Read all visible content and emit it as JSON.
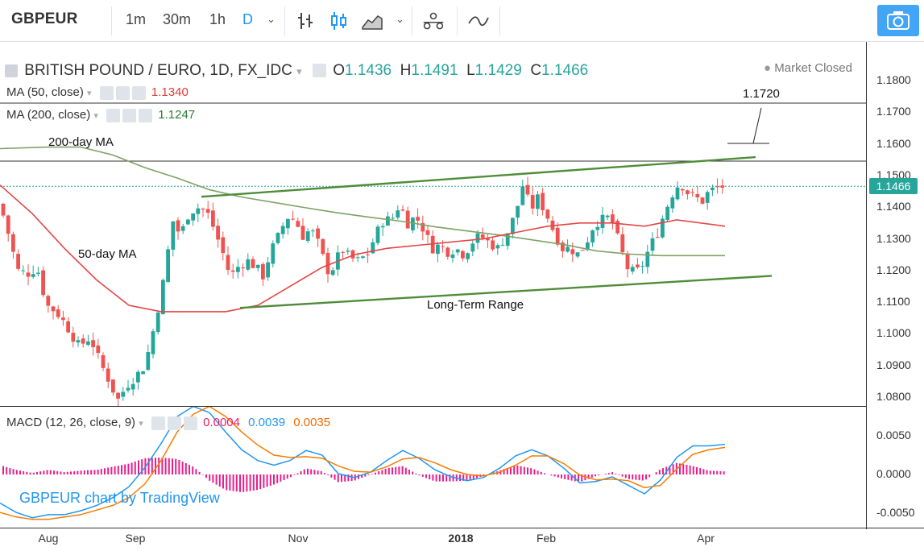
{
  "toolbar": {
    "symbol": "GBPEUR",
    "timeframes": [
      "1m",
      "30m",
      "1h",
      "D"
    ],
    "active_timeframe": "D",
    "icons": [
      "bar-chart-icon",
      "candlestick-icon",
      "area-chart-icon",
      "chevron-down-icon",
      "compare-icon",
      "indicators-icon",
      "snapshot-icon"
    ]
  },
  "legend": {
    "title": "BRITISH POUND / EURO, 1D, FX_IDC",
    "open_label": "O",
    "open": "1.1436",
    "high_label": "H",
    "high": "1.1491",
    "low_label": "L",
    "low": "1.1429",
    "close_label": "C",
    "close": "1.1466",
    "status": "Market Closed",
    "ma50_label": "MA (50, close)",
    "ma50_value": "1.1340",
    "ma200_label": "MA (200, close)",
    "ma200_value": "1.1247",
    "macd_label": "MACD (12, 26, close, 9)",
    "macd_hist": "0.0004",
    "macd_line": "0.0039",
    "macd_signal": "0.0035"
  },
  "colors": {
    "up": "#26a69a",
    "down": "#ef5350",
    "ma50": "#e54545",
    "ma200": "#7fa265",
    "trend": "#4f8c3a",
    "macd": "#2196f3",
    "signal": "#f57c00",
    "hist": "#e91e8c",
    "accent": "#2196f3"
  },
  "annotations": {
    "ma200_text": "200-day MA",
    "ma50_text": "50-day MA",
    "range_text": "Long-Term Range",
    "target_text": "1.1720"
  },
  "watermark": "GBPEUR chart by TradingView",
  "current_price_tag": "1.1466",
  "chart_data": [
    {
      "type": "candlestick",
      "title": "BRITISH POUND / EURO, 1D, FX_IDC",
      "x_ticks": [
        "Aug",
        "Sep",
        "Nov",
        "2018",
        "Feb",
        "Apr"
      ],
      "y_ticks": [
        "1.1800",
        "1.1700",
        "1.1600",
        "1.1500",
        "1.1400",
        "1.1300",
        "1.1200",
        "1.1100",
        "1.1000",
        "1.0900",
        "1.0800"
      ],
      "ylim": [
        1.077,
        1.1825
      ],
      "close_path": [
        [
          0,
          1.141
        ],
        [
          10,
          1.132
        ],
        [
          22,
          1.12
        ],
        [
          34,
          1.119
        ],
        [
          46,
          1.121
        ],
        [
          58,
          1.109
        ],
        [
          70,
          1.107
        ],
        [
          84,
          1.102
        ],
        [
          98,
          1.096
        ],
        [
          112,
          1.099
        ],
        [
          124,
          1.091
        ],
        [
          134,
          1.086
        ],
        [
          146,
          1.079
        ],
        [
          158,
          1.084
        ],
        [
          170,
          1.087
        ],
        [
          180,
          1.09
        ],
        [
          192,
          1.103
        ],
        [
          204,
          1.118
        ],
        [
          214,
          1.136
        ],
        [
          224,
          1.131
        ],
        [
          234,
          1.138
        ],
        [
          244,
          1.14
        ],
        [
          256,
          1.139
        ],
        [
          266,
          1.133
        ],
        [
          276,
          1.126
        ],
        [
          286,
          1.118
        ],
        [
          298,
          1.122
        ],
        [
          308,
          1.123
        ],
        [
          318,
          1.121
        ],
        [
          326,
          1.118
        ],
        [
          336,
          1.126
        ],
        [
          346,
          1.131
        ],
        [
          356,
          1.137
        ],
        [
          366,
          1.136
        ],
        [
          376,
          1.131
        ],
        [
          386,
          1.133
        ],
        [
          396,
          1.128
        ],
        [
          406,
          1.12
        ],
        [
          414,
          1.121
        ],
        [
          424,
          1.127
        ],
        [
          434,
          1.124
        ],
        [
          444,
          1.123
        ],
        [
          456,
          1.125
        ],
        [
          466,
          1.131
        ],
        [
          476,
          1.136
        ],
        [
          486,
          1.136
        ],
        [
          496,
          1.141
        ],
        [
          506,
          1.135
        ],
        [
          516,
          1.137
        ],
        [
          526,
          1.133
        ],
        [
          536,
          1.127
        ],
        [
          546,
          1.128
        ],
        [
          556,
          1.126
        ],
        [
          566,
          1.127
        ],
        [
          576,
          1.125
        ],
        [
          586,
          1.129
        ],
        [
          596,
          1.131
        ],
        [
          606,
          1.129
        ],
        [
          618,
          1.127
        ],
        [
          630,
          1.132
        ],
        [
          640,
          1.138
        ],
        [
          650,
          1.148
        ],
        [
          658,
          1.139
        ],
        [
          668,
          1.143
        ],
        [
          678,
          1.138
        ],
        [
          688,
          1.132
        ],
        [
          698,
          1.127
        ],
        [
          708,
          1.127
        ],
        [
          718,
          1.125
        ],
        [
          728,
          1.129
        ],
        [
          738,
          1.135
        ],
        [
          748,
          1.136
        ],
        [
          758,
          1.137
        ],
        [
          768,
          1.129
        ],
        [
          778,
          1.121
        ],
        [
          788,
          1.119
        ],
        [
          796,
          1.121
        ],
        [
          806,
          1.127
        ],
        [
          816,
          1.132
        ],
        [
          826,
          1.139
        ],
        [
          834,
          1.144
        ],
        [
          844,
          1.148
        ],
        [
          852,
          1.145
        ],
        [
          862,
          1.143
        ],
        [
          872,
          1.142
        ],
        [
          880,
          1.145
        ],
        [
          890,
          1.146
        ],
        [
          898,
          1.1466
        ]
      ],
      "ma50": [
        [
          0,
          1.147
        ],
        [
          40,
          1.138
        ],
        [
          80,
          1.127
        ],
        [
          120,
          1.117
        ],
        [
          160,
          1.109
        ],
        [
          200,
          1.107
        ],
        [
          240,
          1.107
        ],
        [
          280,
          1.107
        ],
        [
          320,
          1.109
        ],
        [
          360,
          1.115
        ],
        [
          400,
          1.121
        ],
        [
          440,
          1.125
        ],
        [
          480,
          1.127
        ],
        [
          520,
          1.128
        ],
        [
          560,
          1.129
        ],
        [
          600,
          1.13
        ],
        [
          640,
          1.132
        ],
        [
          680,
          1.134
        ],
        [
          720,
          1.135
        ],
        [
          760,
          1.135
        ],
        [
          800,
          1.134
        ],
        [
          840,
          1.136
        ],
        [
          900,
          1.134
        ]
      ],
      "ma200": [
        [
          0,
          1.1585
        ],
        [
          60,
          1.159
        ],
        [
          100,
          1.159
        ],
        [
          140,
          1.1565
        ],
        [
          180,
          1.1525
        ],
        [
          220,
          1.1492
        ],
        [
          260,
          1.1455
        ],
        [
          300,
          1.1432
        ],
        [
          340,
          1.1415
        ],
        [
          380,
          1.1398
        ],
        [
          420,
          1.1382
        ],
        [
          460,
          1.1368
        ],
        [
          500,
          1.1355
        ],
        [
          540,
          1.1338
        ],
        [
          580,
          1.1325
        ],
        [
          620,
          1.1312
        ],
        [
          660,
          1.1297
        ],
        [
          700,
          1.1282
        ],
        [
          740,
          1.1262
        ],
        [
          780,
          1.1252
        ],
        [
          820,
          1.1247
        ],
        [
          900,
          1.1247
        ]
      ],
      "trend_upper": [
        [
          250,
          1.1433
        ],
        [
          938,
          1.1558
        ]
      ],
      "trend_lower": [
        [
          298,
          1.1082
        ],
        [
          958,
          1.1183
        ]
      ],
      "annotations": [
        "200-day MA",
        "50-day MA",
        "Long-Term Range",
        "1.1720"
      ]
    },
    {
      "type": "bar+line",
      "title": "MACD (12, 26, close, 9)",
      "y_ticks": [
        "0.0050",
        "0.0000",
        "-0.0050"
      ],
      "ylim": [
        -0.0058,
        0.0088
      ],
      "macd_line": [
        [
          0,
          -0.0037
        ],
        [
          20,
          -0.0049
        ],
        [
          40,
          -0.0056
        ],
        [
          60,
          -0.0052
        ],
        [
          80,
          -0.0052
        ],
        [
          100,
          -0.0047
        ],
        [
          120,
          -0.004
        ],
        [
          140,
          -0.003
        ],
        [
          160,
          -0.0016
        ],
        [
          180,
          0.0009
        ],
        [
          200,
          0.004
        ],
        [
          220,
          0.0075
        ],
        [
          240,
          0.0088
        ],
        [
          260,
          0.008
        ],
        [
          280,
          0.0055
        ],
        [
          300,
          0.0032
        ],
        [
          320,
          0.0018
        ],
        [
          340,
          0.0012
        ],
        [
          360,
          0.0018
        ],
        [
          380,
          0.0031
        ],
        [
          400,
          0.0025
        ],
        [
          420,
          0.0001
        ],
        [
          440,
          -0.0004
        ],
        [
          460,
          0.0003
        ],
        [
          480,
          0.0018
        ],
        [
          500,
          0.0031
        ],
        [
          520,
          0.0021
        ],
        [
          540,
          0.0006
        ],
        [
          560,
          -0.0003
        ],
        [
          580,
          -0.0008
        ],
        [
          600,
          -0.0004
        ],
        [
          620,
          0.0008
        ],
        [
          640,
          0.0024
        ],
        [
          660,
          0.0032
        ],
        [
          680,
          0.0024
        ],
        [
          700,
          0.0008
        ],
        [
          720,
          -0.0011
        ],
        [
          740,
          -0.0009
        ],
        [
          760,
          -0.0003
        ],
        [
          780,
          -0.0014
        ],
        [
          800,
          -0.0025
        ],
        [
          820,
          -0.0007
        ],
        [
          840,
          0.0022
        ],
        [
          860,
          0.0037
        ],
        [
          880,
          0.0037
        ],
        [
          900,
          0.0039
        ]
      ],
      "signal_line": [
        [
          0,
          -0.0049
        ],
        [
          20,
          -0.0055
        ],
        [
          40,
          -0.0058
        ],
        [
          60,
          -0.0058
        ],
        [
          80,
          -0.0055
        ],
        [
          100,
          -0.0052
        ],
        [
          120,
          -0.0046
        ],
        [
          140,
          -0.004
        ],
        [
          160,
          -0.003
        ],
        [
          180,
          -0.0012
        ],
        [
          200,
          0.0018
        ],
        [
          220,
          0.0055
        ],
        [
          240,
          0.0078
        ],
        [
          260,
          0.0088
        ],
        [
          280,
          0.0075
        ],
        [
          300,
          0.0055
        ],
        [
          320,
          0.0038
        ],
        [
          340,
          0.0025
        ],
        [
          360,
          0.0022
        ],
        [
          380,
          0.0023
        ],
        [
          400,
          0.0021
        ],
        [
          420,
          0.0011
        ],
        [
          440,
          0.0004
        ],
        [
          460,
          0.0003
        ],
        [
          480,
          0.001
        ],
        [
          500,
          0.002
        ],
        [
          520,
          0.0022
        ],
        [
          540,
          0.0015
        ],
        [
          560,
          0.0006
        ],
        [
          580,
          0
        ],
        [
          600,
          -0.0002
        ],
        [
          620,
          0.0003
        ],
        [
          640,
          0.0012
        ],
        [
          660,
          0.0024
        ],
        [
          680,
          0.0024
        ],
        [
          700,
          0.0014
        ],
        [
          720,
          -0.0001
        ],
        [
          740,
          -0.0007
        ],
        [
          760,
          -0.0006
        ],
        [
          780,
          -0.0008
        ],
        [
          800,
          -0.0017
        ],
        [
          820,
          -0.0014
        ],
        [
          840,
          0.0007
        ],
        [
          860,
          0.0026
        ],
        [
          880,
          0.0032
        ],
        [
          900,
          0.0035
        ]
      ],
      "histogram_series": [
        "MACD histogram"
      ]
    }
  ]
}
